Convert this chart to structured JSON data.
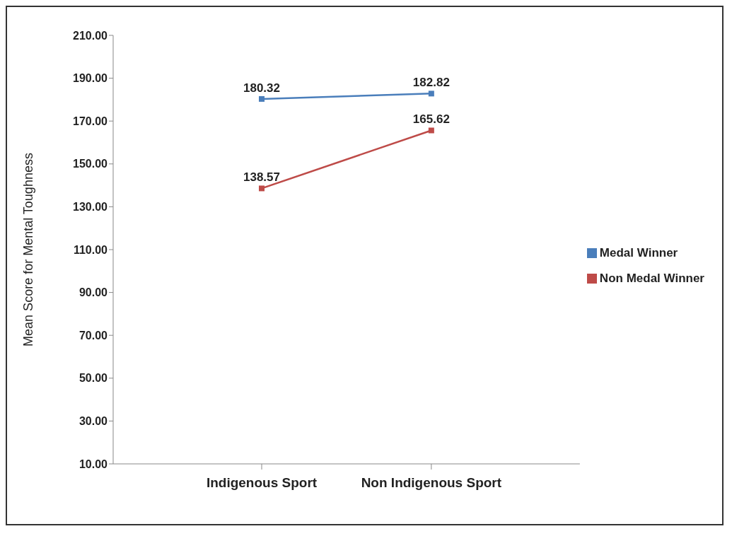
{
  "chart_data": {
    "type": "line",
    "ylabel": "Mean Score for Mental Toughness",
    "categories": [
      "Indigenous Sport",
      "Non Indigenous Sport"
    ],
    "series": [
      {
        "name": "Medal Winner",
        "color": "#4a7ebb",
        "values": [
          180.32,
          182.82
        ]
      },
      {
        "name": "Non Medal Winner",
        "color": "#be4b48",
        "values": [
          138.57,
          165.62
        ]
      }
    ],
    "ylim": [
      10,
      210
    ],
    "yticks": [
      {
        "value": 10,
        "label": "10.00"
      },
      {
        "value": 30,
        "label": "30.00"
      },
      {
        "value": 50,
        "label": "50.00"
      },
      {
        "value": 70,
        "label": "70.00"
      },
      {
        "value": 90,
        "label": "90.00"
      },
      {
        "value": 110,
        "label": "110.00"
      },
      {
        "value": 130,
        "label": "130.00"
      },
      {
        "value": 150,
        "label": "150.00"
      },
      {
        "value": 170,
        "label": "170.00"
      },
      {
        "value": 190,
        "label": "190.00"
      },
      {
        "value": 210,
        "label": "210.00"
      }
    ],
    "grid": false,
    "legend": "right",
    "marker": "square",
    "line_style": "solid",
    "data_labels": true
  }
}
